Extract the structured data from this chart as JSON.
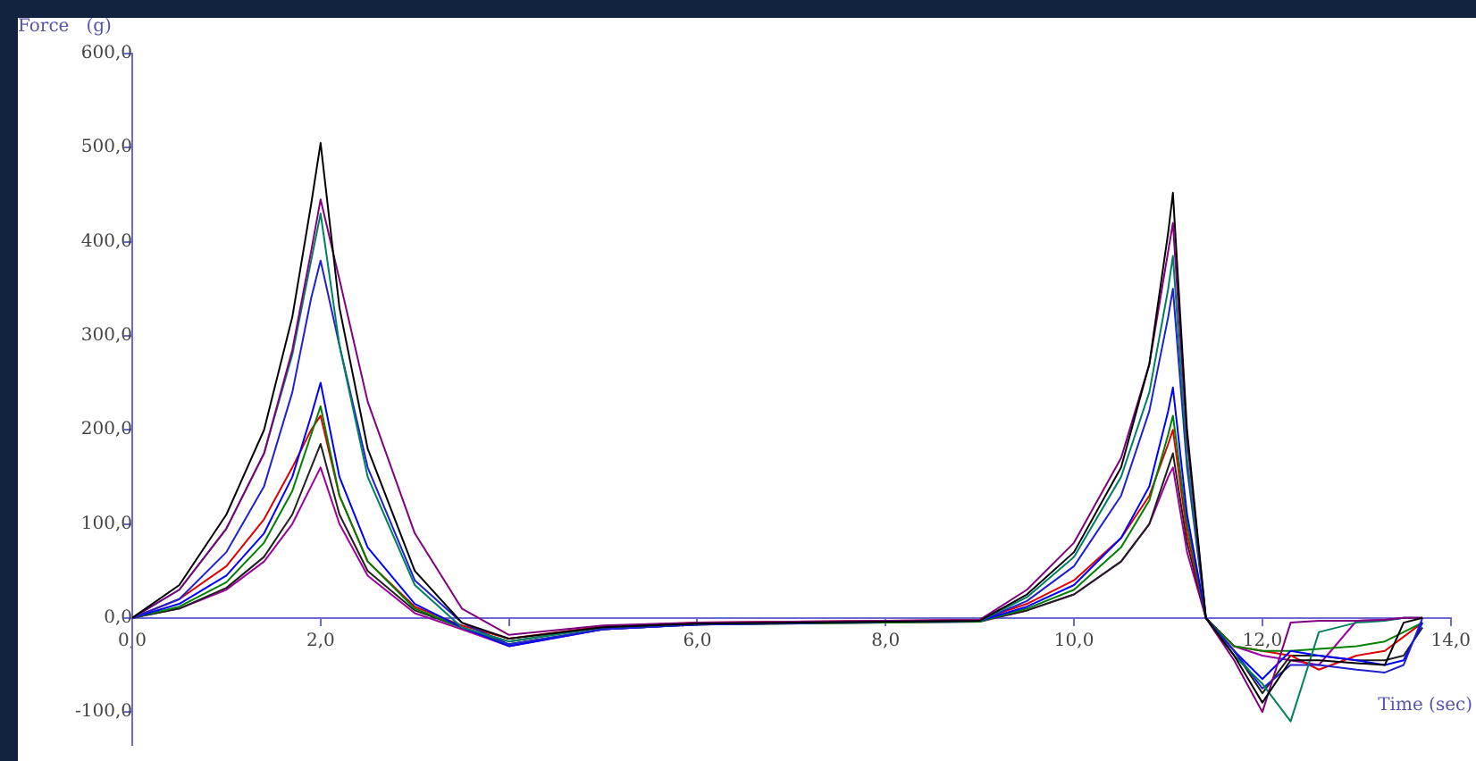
{
  "chart_data": {
    "type": "line",
    "xlabel": "Time (sec)",
    "ylabel": "Force   (g)",
    "x": [
      0,
      0.5,
      1,
      1.4,
      1.7,
      1.9,
      2,
      2.2,
      2.5,
      3,
      3.5,
      4,
      5,
      6,
      8,
      9,
      9.5,
      10,
      10.5,
      10.8,
      11,
      11.05,
      11.2,
      11.4,
      11.7,
      12,
      12.3,
      12.6,
      13,
      13.3,
      13.5,
      13.7
    ],
    "series": [
      {
        "color": "#000000",
        "values": [
          0,
          35,
          110,
          200,
          320,
          440,
          505,
          330,
          180,
          50,
          -5,
          -22,
          -10,
          -6,
          -4,
          -3,
          25,
          70,
          160,
          270,
          410,
          452,
          200,
          0,
          -40,
          -90,
          -45,
          -45,
          -48,
          -50,
          -5,
          0
        ]
      },
      {
        "color": "#800080",
        "values": [
          0,
          30,
          95,
          175,
          285,
          390,
          445,
          360,
          230,
          90,
          10,
          -18,
          -8,
          -5,
          -3,
          -2,
          30,
          80,
          170,
          270,
          390,
          420,
          190,
          0,
          -45,
          -100,
          -5,
          -3,
          -3,
          -2,
          0,
          0
        ]
      },
      {
        "color": "#008060",
        "values": [
          0,
          30,
          95,
          175,
          280,
          380,
          430,
          290,
          150,
          35,
          -10,
          -25,
          -10,
          -6,
          -4,
          -3,
          22,
          65,
          150,
          240,
          350,
          385,
          170,
          0,
          -40,
          -70,
          -110,
          -15,
          -5,
          -3,
          0,
          0
        ]
      },
      {
        "color": "#2020d0",
        "values": [
          0,
          20,
          70,
          140,
          240,
          340,
          380,
          290,
          160,
          40,
          -5,
          -28,
          -12,
          -7,
          -4,
          -3,
          18,
          55,
          130,
          220,
          320,
          350,
          160,
          0,
          -35,
          -75,
          -50,
          -50,
          -55,
          -58,
          -50,
          0
        ]
      },
      {
        "color": "#0000ff",
        "values": [
          0,
          15,
          45,
          90,
          150,
          215,
          250,
          150,
          75,
          15,
          -10,
          -30,
          -12,
          -7,
          -4,
          -3,
          12,
          35,
          85,
          140,
          220,
          245,
          110,
          0,
          -35,
          -65,
          -35,
          -40,
          -45,
          -50,
          -45,
          -5
        ]
      },
      {
        "color": "#008000",
        "values": [
          0,
          12,
          38,
          80,
          135,
          195,
          225,
          130,
          60,
          10,
          -10,
          -28,
          -12,
          -7,
          -5,
          -4,
          10,
          30,
          75,
          125,
          195,
          215,
          100,
          0,
          -30,
          -35,
          -35,
          -33,
          -30,
          -25,
          -15,
          -5
        ]
      },
      {
        "color": "#e00000",
        "values": [
          0,
          20,
          55,
          105,
          160,
          200,
          215,
          130,
          60,
          12,
          -8,
          -22,
          -9,
          -5,
          -3,
          -2,
          15,
          40,
          85,
          130,
          185,
          200,
          90,
          0,
          -30,
          -35,
          -40,
          -55,
          -40,
          -35,
          -20,
          -5
        ]
      },
      {
        "color": "#202020",
        "values": [
          0,
          10,
          32,
          65,
          110,
          160,
          185,
          110,
          50,
          8,
          -10,
          -25,
          -10,
          -6,
          -4,
          -3,
          8,
          25,
          60,
          100,
          160,
          175,
          80,
          0,
          -35,
          -80,
          -40,
          -40,
          -45,
          -45,
          -40,
          -10
        ]
      },
      {
        "color": "#a000a0",
        "values": [
          0,
          10,
          30,
          60,
          100,
          140,
          160,
          100,
          45,
          5,
          -12,
          -30,
          -12,
          -7,
          -5,
          -4,
          8,
          25,
          60,
          100,
          150,
          160,
          70,
          0,
          -30,
          -40,
          -45,
          -50,
          -3,
          -2,
          0,
          0
        ]
      }
    ],
    "xlim": [
      0,
      14
    ],
    "ylim": [
      -135,
      600
    ],
    "xticks": [
      {
        "value": 0,
        "label": "0,0"
      },
      {
        "value": 2,
        "label": "2,0"
      },
      {
        "value": 4,
        "label": null
      },
      {
        "value": 6,
        "label": "6,0"
      },
      {
        "value": 8,
        "label": "8,0"
      },
      {
        "value": 10,
        "label": "10,0"
      },
      {
        "value": 12,
        "label": "12,0"
      },
      {
        "value": 14,
        "label": "14,0"
      }
    ],
    "yticks": [
      {
        "value": -100,
        "label": "-100,0"
      },
      {
        "value": 0,
        "label": "0,0"
      },
      {
        "value": 100,
        "label": "100,0"
      },
      {
        "value": 200,
        "label": "200,0"
      },
      {
        "value": 300,
        "label": "300,0"
      },
      {
        "value": 400,
        "label": "400,0"
      },
      {
        "value": 500,
        "label": "500,0"
      },
      {
        "value": 600,
        "label": "600,0"
      }
    ],
    "grid": false,
    "legend": false,
    "marker": "none",
    "line_style": "solid"
  }
}
